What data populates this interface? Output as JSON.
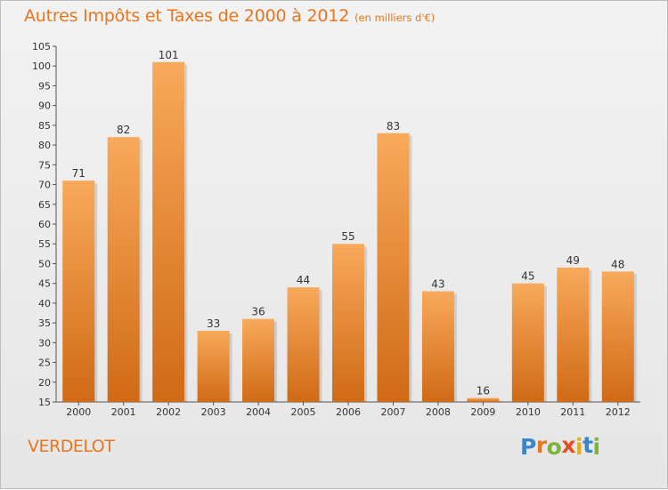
{
  "header": {
    "title": "Autres Impôts et Taxes de 2000 à 2012",
    "subtitle": "(en milliers d'€)"
  },
  "footer": {
    "place": "VERDELOT",
    "logo": {
      "letters": [
        "P",
        "r",
        "o",
        "x",
        "i",
        "t",
        "i"
      ],
      "colors": [
        "#3a86c8",
        "#e8761f",
        "#7bb33b",
        "#e84d1f",
        "#e0b020",
        "#3a86c8",
        "#7bb33b"
      ]
    }
  },
  "chart_data": {
    "type": "bar",
    "title": "Autres Impôts et Taxes de 2000 à 2012",
    "subtitle": "(en milliers d'€)",
    "categories": [
      "2000",
      "2001",
      "2002",
      "2003",
      "2004",
      "2005",
      "2006",
      "2007",
      "2008",
      "2009",
      "2010",
      "2011",
      "2012"
    ],
    "values": [
      71,
      82,
      101,
      33,
      36,
      44,
      55,
      83,
      43,
      16,
      45,
      49,
      48
    ],
    "ylim": [
      15,
      105
    ],
    "yticks": [
      15,
      20,
      25,
      30,
      35,
      40,
      45,
      50,
      55,
      60,
      65,
      70,
      75,
      80,
      85,
      90,
      95,
      100,
      105
    ],
    "grid": false,
    "legend": "none",
    "colors": {
      "bar_light": "#f8a95a",
      "bar_dark": "#d06a16",
      "label": "#333333"
    }
  }
}
